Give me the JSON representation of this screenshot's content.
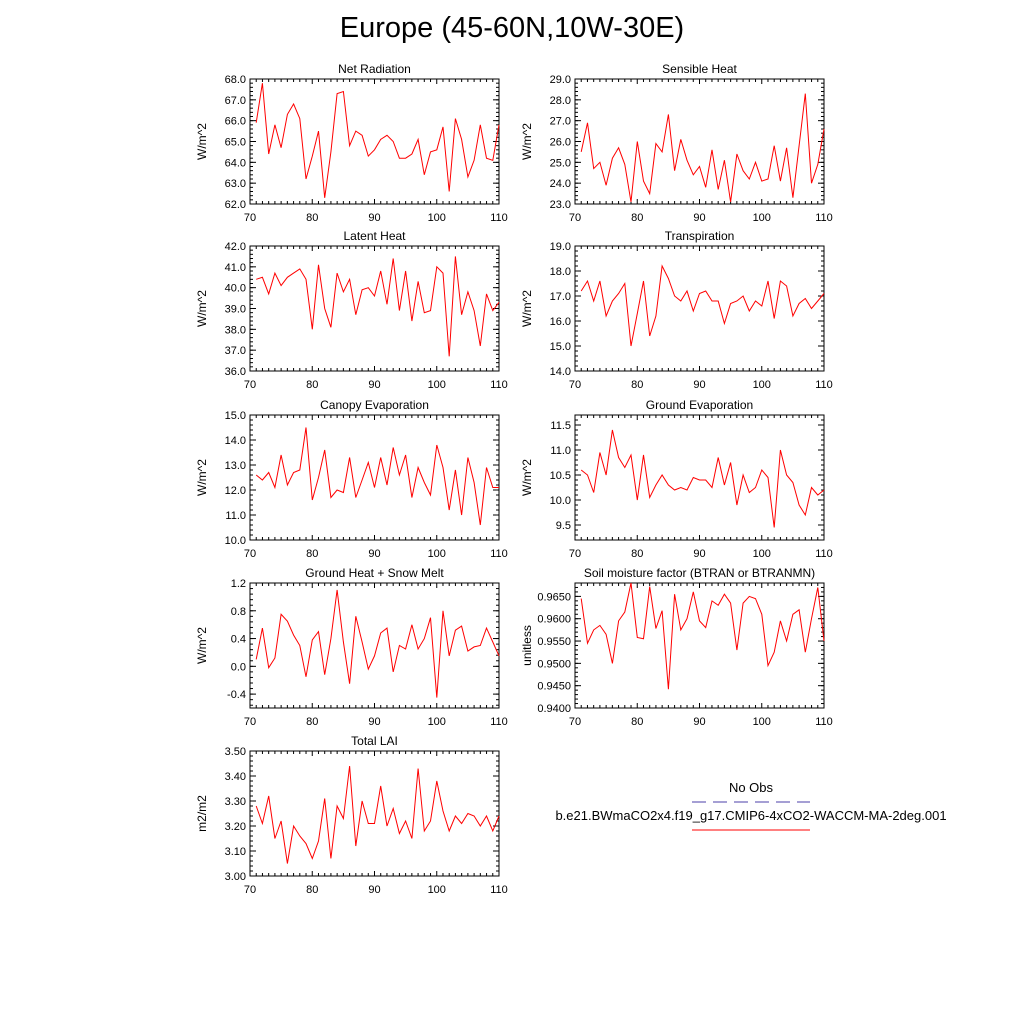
{
  "page": {
    "title": "Europe (45-60N,10W-30E)"
  },
  "legend": {
    "obs_label": "No Obs",
    "obs_color": "#4b3fa8",
    "case_label": "b.e21.BWmaCO2x4.f19_g17.CMIP6-4xCO2-WACCM-MA-2deg.001",
    "case_color": "#ff0000"
  },
  "chart_data": [
    {
      "type": "line",
      "title": "Net Radiation",
      "xlabel": "",
      "ylabel": "W/m^2",
      "xlim": [
        70,
        110
      ],
      "ylim": [
        62,
        68
      ],
      "yticks": [
        62,
        63,
        64,
        65,
        66,
        67,
        68
      ],
      "ytick_labels": [
        "62.0",
        "63.0",
        "64.0",
        "65.0",
        "66.0",
        "67.0",
        "68.0"
      ],
      "xticks": [
        70,
        80,
        90,
        100,
        110
      ],
      "series": [
        {
          "color": "#ff0000",
          "x_start": 71,
          "values": [
            65.9,
            67.8,
            64.4,
            65.8,
            64.7,
            66.3,
            66.8,
            66.1,
            63.2,
            64.3,
            65.5,
            62.3,
            64.5,
            67.3,
            67.4,
            64.8,
            65.5,
            65.3,
            64.3,
            64.6,
            65.1,
            65.3,
            65.0,
            64.2,
            64.2,
            64.4,
            65.1,
            63.4,
            64.5,
            64.6,
            65.7,
            62.6,
            66.1,
            65.1,
            63.3,
            64.1,
            65.8,
            64.2,
            64.1,
            65.8
          ]
        }
      ]
    },
    {
      "type": "line",
      "title": "Sensible Heat",
      "xlabel": "",
      "ylabel": "W/m^2",
      "xlim": [
        70,
        110
      ],
      "ylim": [
        23,
        29
      ],
      "yticks": [
        23,
        24,
        25,
        26,
        27,
        28,
        29
      ],
      "ytick_labels": [
        "23.0",
        "24.0",
        "25.0",
        "26.0",
        "27.0",
        "28.0",
        "29.0"
      ],
      "xticks": [
        70,
        80,
        90,
        100,
        110
      ],
      "series": [
        {
          "color": "#ff0000",
          "x_start": 71,
          "values": [
            25.5,
            26.9,
            24.7,
            25.0,
            23.9,
            25.2,
            25.7,
            24.9,
            23.1,
            26.0,
            24.1,
            23.5,
            25.9,
            25.5,
            27.3,
            24.6,
            26.1,
            25.1,
            24.4,
            24.8,
            23.8,
            25.6,
            23.7,
            25.1,
            23.1,
            25.4,
            24.6,
            24.2,
            25.0,
            24.1,
            24.2,
            25.8,
            24.1,
            25.7,
            23.3,
            25.8,
            28.3,
            24.0,
            24.9,
            26.6
          ]
        }
      ]
    },
    {
      "type": "line",
      "title": "Latent Heat",
      "xlabel": "",
      "ylabel": "W/m^2",
      "xlim": [
        70,
        110
      ],
      "ylim": [
        36,
        42
      ],
      "yticks": [
        36,
        37,
        38,
        39,
        40,
        41,
        42
      ],
      "ytick_labels": [
        "36.0",
        "37.0",
        "38.0",
        "39.0",
        "40.0",
        "41.0",
        "42.0"
      ],
      "xticks": [
        70,
        80,
        90,
        100,
        110
      ],
      "series": [
        {
          "color": "#ff0000",
          "x_start": 71,
          "values": [
            40.4,
            40.5,
            39.7,
            40.7,
            40.1,
            40.5,
            40.7,
            40.9,
            40.4,
            38.0,
            41.1,
            39.0,
            38.1,
            40.7,
            39.8,
            40.4,
            38.7,
            39.9,
            40.0,
            39.6,
            40.8,
            39.2,
            41.4,
            38.9,
            40.8,
            38.4,
            40.3,
            38.8,
            38.9,
            41.0,
            40.7,
            36.7,
            41.5,
            38.7,
            39.8,
            38.9,
            37.2,
            39.7,
            38.9,
            39.3
          ]
        }
      ]
    },
    {
      "type": "line",
      "title": "Transpiration",
      "xlabel": "",
      "ylabel": "W/m^2",
      "xlim": [
        70,
        110
      ],
      "ylim": [
        14,
        19
      ],
      "yticks": [
        14,
        15,
        16,
        17,
        18,
        19
      ],
      "ytick_labels": [
        "14.0",
        "15.0",
        "16.0",
        "17.0",
        "18.0",
        "19.0"
      ],
      "xticks": [
        70,
        80,
        90,
        100,
        110
      ],
      "series": [
        {
          "color": "#ff0000",
          "x_start": 71,
          "values": [
            17.2,
            17.6,
            16.8,
            17.6,
            16.2,
            16.8,
            17.1,
            17.5,
            15.0,
            16.3,
            17.6,
            15.4,
            16.2,
            18.2,
            17.7,
            17.0,
            16.8,
            17.2,
            16.4,
            17.1,
            17.2,
            16.8,
            16.8,
            15.9,
            16.7,
            16.8,
            17.0,
            16.4,
            16.8,
            16.6,
            17.6,
            16.1,
            17.6,
            17.4,
            16.2,
            16.7,
            16.9,
            16.5,
            16.8,
            17.1
          ]
        }
      ]
    },
    {
      "type": "line",
      "title": "Canopy Evaporation",
      "xlabel": "",
      "ylabel": "W/m^2",
      "xlim": [
        70,
        110
      ],
      "ylim": [
        10,
        15
      ],
      "yticks": [
        10,
        11,
        12,
        13,
        14,
        15
      ],
      "ytick_labels": [
        "10.0",
        "11.0",
        "12.0",
        "13.0",
        "14.0",
        "15.0"
      ],
      "xticks": [
        70,
        80,
        90,
        100,
        110
      ],
      "series": [
        {
          "color": "#ff0000",
          "x_start": 71,
          "values": [
            12.6,
            12.4,
            12.7,
            12.1,
            13.4,
            12.2,
            12.7,
            12.8,
            14.5,
            11.6,
            12.5,
            13.6,
            11.7,
            12.0,
            11.9,
            13.3,
            11.7,
            12.4,
            13.1,
            12.1,
            13.3,
            12.2,
            13.7,
            12.6,
            13.4,
            11.7,
            12.9,
            12.3,
            11.8,
            13.8,
            12.9,
            11.2,
            12.8,
            11.0,
            13.3,
            12.3,
            10.6,
            12.9,
            12.1,
            12.1
          ]
        }
      ]
    },
    {
      "type": "line",
      "title": "Ground Evaporation",
      "xlabel": "",
      "ylabel": "W/m^2",
      "xlim": [
        70,
        110
      ],
      "ylim": [
        9.2,
        11.7
      ],
      "yticks": [
        9.5,
        10.0,
        10.5,
        11.0,
        11.5
      ],
      "ytick_labels": [
        "9.5",
        "10.0",
        "10.5",
        "11.0",
        "11.5"
      ],
      "xticks": [
        70,
        80,
        90,
        100,
        110
      ],
      "series": [
        {
          "color": "#ff0000",
          "x_start": 71,
          "values": [
            10.6,
            10.5,
            10.15,
            10.95,
            10.5,
            11.4,
            10.85,
            10.65,
            10.9,
            10.0,
            10.9,
            10.05,
            10.3,
            10.5,
            10.3,
            10.2,
            10.25,
            10.2,
            10.45,
            10.4,
            10.4,
            10.25,
            10.85,
            10.3,
            10.75,
            9.9,
            10.5,
            10.15,
            10.25,
            10.6,
            10.45,
            9.45,
            11.0,
            10.5,
            10.35,
            9.9,
            9.7,
            10.25,
            10.1,
            10.2
          ]
        }
      ]
    },
    {
      "type": "line",
      "title": "Ground Heat + Snow Melt",
      "xlabel": "",
      "ylabel": "W/m^2",
      "xlim": [
        70,
        110
      ],
      "ylim": [
        -0.6,
        1.2
      ],
      "yticks": [
        -0.4,
        0.0,
        0.4,
        0.8,
        1.2
      ],
      "ytick_labels": [
        "-0.4",
        "0.0",
        "0.4",
        "0.8",
        "1.2"
      ],
      "xticks": [
        70,
        80,
        90,
        100,
        110
      ],
      "series": [
        {
          "color": "#ff0000",
          "x_start": 71,
          "values": [
            0.1,
            0.55,
            -0.02,
            0.12,
            0.75,
            0.65,
            0.45,
            0.3,
            -0.15,
            0.38,
            0.5,
            -0.12,
            0.4,
            1.1,
            0.35,
            -0.25,
            0.72,
            0.35,
            -0.04,
            0.15,
            0.48,
            0.55,
            -0.08,
            0.3,
            0.25,
            0.6,
            0.25,
            0.4,
            0.7,
            -0.45,
            0.8,
            0.15,
            0.52,
            0.58,
            0.22,
            0.28,
            0.3,
            0.55,
            0.35,
            0.15
          ]
        }
      ]
    },
    {
      "type": "line",
      "title": "Soil moisture factor (BTRAN or BTRANMN)",
      "xlabel": "",
      "ylabel": "unitless",
      "xlim": [
        70,
        110
      ],
      "ylim": [
        0.94,
        0.968
      ],
      "yticks": [
        0.94,
        0.945,
        0.95,
        0.955,
        0.96,
        0.965
      ],
      "ytick_labels": [
        "0.9400",
        "0.9450",
        "0.9500",
        "0.9550",
        "0.9600",
        "0.9650"
      ],
      "xticks": [
        70,
        80,
        90,
        100,
        110
      ],
      "series": [
        {
          "color": "#ff0000",
          "x_start": 71,
          "values": [
            0.9645,
            0.9545,
            0.9575,
            0.9585,
            0.9565,
            0.95,
            0.9595,
            0.9615,
            0.968,
            0.9558,
            0.9555,
            0.9672,
            0.9578,
            0.9618,
            0.9442,
            0.9655,
            0.9575,
            0.96,
            0.966,
            0.9595,
            0.958,
            0.964,
            0.963,
            0.9655,
            0.9635,
            0.953,
            0.9635,
            0.965,
            0.9645,
            0.961,
            0.9495,
            0.9525,
            0.9595,
            0.955,
            0.961,
            0.962,
            0.9525,
            0.96,
            0.967,
            0.955
          ]
        }
      ]
    },
    {
      "type": "line",
      "title": "Total LAI",
      "xlabel": "",
      "ylabel": "m2/m2",
      "xlim": [
        70,
        110
      ],
      "ylim": [
        3.0,
        3.5
      ],
      "yticks": [
        3.0,
        3.1,
        3.2,
        3.3,
        3.4,
        3.5
      ],
      "ytick_labels": [
        "3.00",
        "3.10",
        "3.20",
        "3.30",
        "3.40",
        "3.50"
      ],
      "xticks": [
        70,
        80,
        90,
        100,
        110
      ],
      "series": [
        {
          "color": "#ff0000",
          "x_start": 71,
          "values": [
            3.28,
            3.21,
            3.32,
            3.15,
            3.22,
            3.05,
            3.2,
            3.16,
            3.13,
            3.07,
            3.14,
            3.31,
            3.07,
            3.28,
            3.23,
            3.44,
            3.12,
            3.3,
            3.21,
            3.21,
            3.36,
            3.2,
            3.27,
            3.17,
            3.22,
            3.15,
            3.43,
            3.18,
            3.22,
            3.38,
            3.26,
            3.18,
            3.24,
            3.21,
            3.25,
            3.24,
            3.2,
            3.24,
            3.18,
            3.24
          ]
        }
      ]
    }
  ]
}
